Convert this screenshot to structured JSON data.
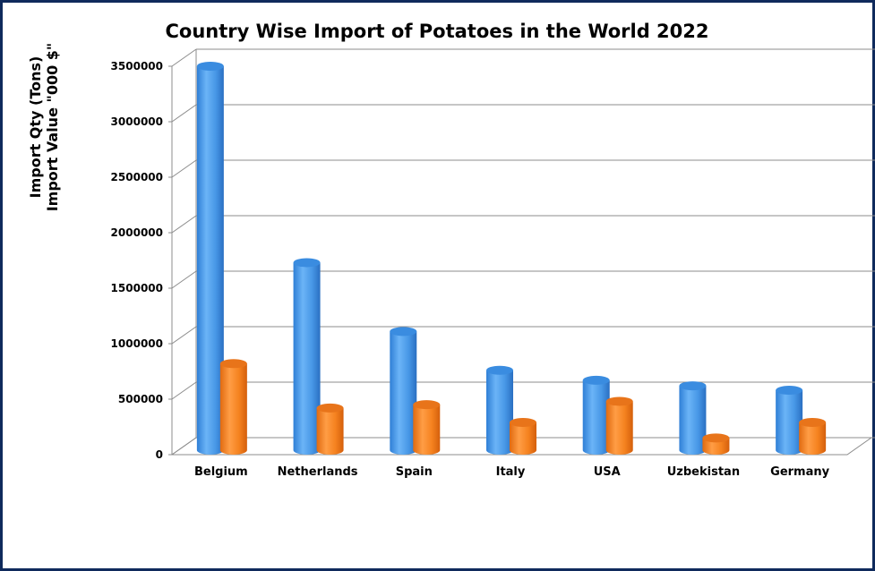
{
  "chart_data": {
    "type": "bar",
    "style": "3d-cylinder",
    "title": "Country Wise Import of Potatoes in the World 2022",
    "ylabel_lines": [
      "Import Qty (Tons)",
      "Import Value \"000 $\""
    ],
    "xlabel": "",
    "categories": [
      "Belgium",
      "Netherlands",
      "Spain",
      "Italy",
      "USA",
      "Uzbekistan",
      "Germany"
    ],
    "series": [
      {
        "name": "Import Qty (Tons)",
        "color": "#4a9be8",
        "values": [
          3460000,
          1690000,
          1070000,
          720000,
          630000,
          580000,
          540000
        ]
      },
      {
        "name": "Import Value \"000 $\"",
        "color": "#f5821f",
        "values": [
          780000,
          380000,
          410000,
          250000,
          440000,
          110000,
          250000
        ]
      }
    ],
    "ylim": [
      0,
      3500000
    ],
    "yticks": [
      0,
      500000,
      1000000,
      1500000,
      2000000,
      2500000,
      3000000,
      3500000
    ],
    "grid": true,
    "legend": "none"
  }
}
